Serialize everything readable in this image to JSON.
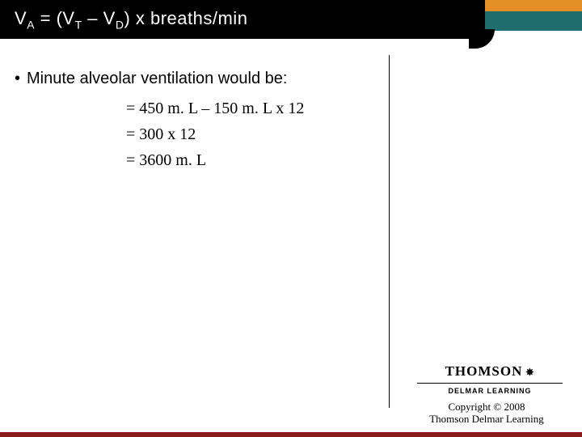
{
  "colors": {
    "header_black": "#000000",
    "header_orange": "#e38e27",
    "header_teal": "#1f6d6d",
    "footer_bar": "#8b1a1a",
    "text_white": "#ffffff",
    "text_black": "#000000",
    "background": "#ffffff"
  },
  "title": {
    "prefix": "V",
    "sub1": "A",
    "mid1": " = (V",
    "sub2": "T",
    "mid2": " – V",
    "sub3": "D",
    "suffix": ") x breaths/min"
  },
  "bullet": {
    "marker": "•",
    "text": "Minute alveolar ventilation would be:"
  },
  "equations": {
    "line1": "= 450 m. L – 150 m. L x 12",
    "line2": "= 300 x 12",
    "line3": "= 3600 m. L"
  },
  "logo": {
    "thomson": "THOMSON",
    "delmar": "DELMAR LEARNING"
  },
  "copyright": {
    "line1": "Copyright © 2008",
    "line2": "Thomson Delmar Learning"
  }
}
